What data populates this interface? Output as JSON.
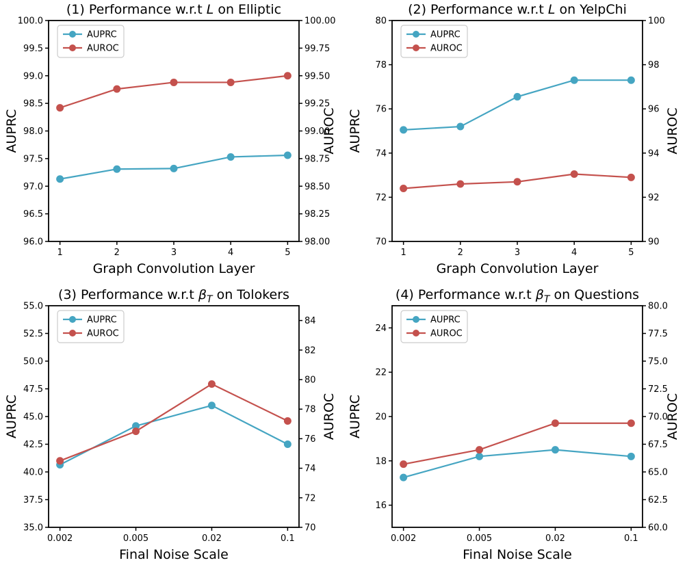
{
  "page": {
    "background": "#ffffff"
  },
  "colors": {
    "auprc": "#45A5C2",
    "auroc": "#C4514D",
    "axis": "#000000",
    "legend_border": "#cccccc",
    "text": "#000000"
  },
  "chart_data": [
    {
      "type": "line",
      "title_segments": [
        {
          "t": "(1) Performance w.r.t "
        },
        {
          "t": "L",
          "style": "italic"
        },
        {
          "t": " on Elliptic"
        }
      ],
      "xlabel": "Graph Convolution Layer",
      "legend_labels": [
        "AUPRC",
        "AUROC"
      ],
      "legend_position": "upper-left",
      "grid": false,
      "x_axis": {
        "tick_labels": [
          "1",
          "2",
          "3",
          "4",
          "5"
        ]
      },
      "left_axis": {
        "label": "AUPRC",
        "min": 96.0,
        "max": 100.0,
        "tick_values": [
          96,
          96.5,
          97,
          97.5,
          98,
          98.5,
          99,
          99.5,
          100
        ],
        "tick_labels": [
          "96.0",
          "96.5",
          "97.0",
          "97.5",
          "98.0",
          "98.5",
          "99.0",
          "99.5",
          "100.0"
        ]
      },
      "right_axis": {
        "label": "AUROC",
        "min": 98.0,
        "max": 100.0,
        "tick_values": [
          98,
          98.25,
          98.5,
          98.75,
          99,
          99.25,
          99.5,
          99.75,
          100
        ],
        "tick_labels": [
          "98.00",
          "98.25",
          "98.50",
          "98.75",
          "99.00",
          "99.25",
          "99.50",
          "99.75",
          "100.00"
        ]
      },
      "series": [
        {
          "name": "AUPRC",
          "axis": "left",
          "color_key": "auprc",
          "values": [
            97.13,
            97.31,
            97.32,
            97.53,
            97.56
          ]
        },
        {
          "name": "AUROC",
          "axis": "right",
          "color_key": "auroc",
          "values": [
            99.21,
            99.38,
            99.44,
            99.44,
            99.5
          ]
        }
      ]
    },
    {
      "type": "line",
      "title_segments": [
        {
          "t": "(2) Performance w.r.t "
        },
        {
          "t": "L",
          "style": "italic"
        },
        {
          "t": " on YelpChi"
        }
      ],
      "xlabel": "Graph Convolution Layer",
      "legend_labels": [
        "AUPRC",
        "AUROC"
      ],
      "legend_position": "upper-left",
      "grid": false,
      "x_axis": {
        "tick_labels": [
          "1",
          "2",
          "3",
          "4",
          "5"
        ]
      },
      "left_axis": {
        "label": "AUPRC",
        "min": 70,
        "max": 80,
        "tick_values": [
          70,
          72,
          74,
          76,
          78,
          80
        ],
        "tick_labels": [
          "70",
          "72",
          "74",
          "76",
          "78",
          "80"
        ]
      },
      "right_axis": {
        "label": "AUROC",
        "min": 90,
        "max": 100,
        "tick_values": [
          90,
          92,
          94,
          96,
          98,
          100
        ],
        "tick_labels": [
          "90",
          "92",
          "94",
          "96",
          "98",
          "100"
        ]
      },
      "series": [
        {
          "name": "AUPRC",
          "axis": "left",
          "color_key": "auprc",
          "values": [
            75.05,
            75.2,
            76.55,
            77.3,
            77.3
          ]
        },
        {
          "name": "AUROC",
          "axis": "right",
          "color_key": "auroc",
          "values": [
            92.4,
            92.6,
            92.7,
            93.05,
            92.9
          ]
        }
      ]
    },
    {
      "type": "line",
      "title_segments": [
        {
          "t": "(3) Performance w.r.t "
        },
        {
          "t": "β",
          "style": "italic"
        },
        {
          "t": "T",
          "style": "italic-sub"
        },
        {
          "t": " on Tolokers"
        }
      ],
      "xlabel": "Final Noise Scale",
      "legend_labels": [
        "AUPRC",
        "AUROC"
      ],
      "legend_position": "upper-left",
      "grid": false,
      "x_axis": {
        "tick_labels": [
          "0.002",
          "0.005",
          "0.02",
          "0.1"
        ]
      },
      "left_axis": {
        "label": "AUPRC",
        "min": 35.0,
        "max": 55.0,
        "tick_values": [
          35,
          37.5,
          40,
          42.5,
          45,
          47.5,
          50,
          52.5,
          55
        ],
        "tick_labels": [
          "35.0",
          "37.5",
          "40.0",
          "42.5",
          "45.0",
          "47.5",
          "50.0",
          "52.5",
          "55.0"
        ]
      },
      "right_axis": {
        "label": "AUROC",
        "min": 70,
        "max": 85,
        "tick_values": [
          70,
          72,
          74,
          76,
          78,
          80,
          82,
          84
        ],
        "tick_labels": [
          "70",
          "72",
          "74",
          "76",
          "78",
          "80",
          "82",
          "84"
        ]
      },
      "series": [
        {
          "name": "AUPRC",
          "axis": "left",
          "color_key": "auprc",
          "values": [
            40.65,
            44.15,
            46.0,
            42.5
          ]
        },
        {
          "name": "AUROC",
          "axis": "right",
          "color_key": "auroc",
          "values": [
            74.5,
            76.5,
            79.7,
            77.2
          ]
        }
      ]
    },
    {
      "type": "line",
      "title_segments": [
        {
          "t": "(4) Performance w.r.t "
        },
        {
          "t": "β",
          "style": "italic"
        },
        {
          "t": "T",
          "style": "italic-sub"
        },
        {
          "t": " on Questions"
        }
      ],
      "xlabel": "Final Noise Scale",
      "legend_labels": [
        "AUPRC",
        "AUROC"
      ],
      "legend_position": "upper-left",
      "grid": false,
      "x_axis": {
        "tick_labels": [
          "0.002",
          "0.005",
          "0.02",
          "0.1"
        ]
      },
      "left_axis": {
        "label": "AUPRC",
        "min": 15,
        "max": 25,
        "tick_values": [
          16,
          18,
          20,
          22,
          24
        ],
        "tick_labels": [
          "16",
          "18",
          "20",
          "22",
          "24"
        ]
      },
      "right_axis": {
        "label": "AUROC",
        "min": 60.0,
        "max": 80.0,
        "tick_values": [
          60,
          62.5,
          65,
          67.5,
          70,
          72.5,
          75,
          77.5,
          80
        ],
        "tick_labels": [
          "60.0",
          "62.5",
          "65.0",
          "67.5",
          "70.0",
          "72.5",
          "75.0",
          "77.5",
          "80.0"
        ]
      },
      "series": [
        {
          "name": "AUPRC",
          "axis": "left",
          "color_key": "auprc",
          "values": [
            17.25,
            18.2,
            18.5,
            18.2
          ]
        },
        {
          "name": "AUROC",
          "axis": "right",
          "color_key": "auroc",
          "values": [
            65.7,
            67.0,
            69.4,
            69.4
          ]
        }
      ]
    }
  ]
}
